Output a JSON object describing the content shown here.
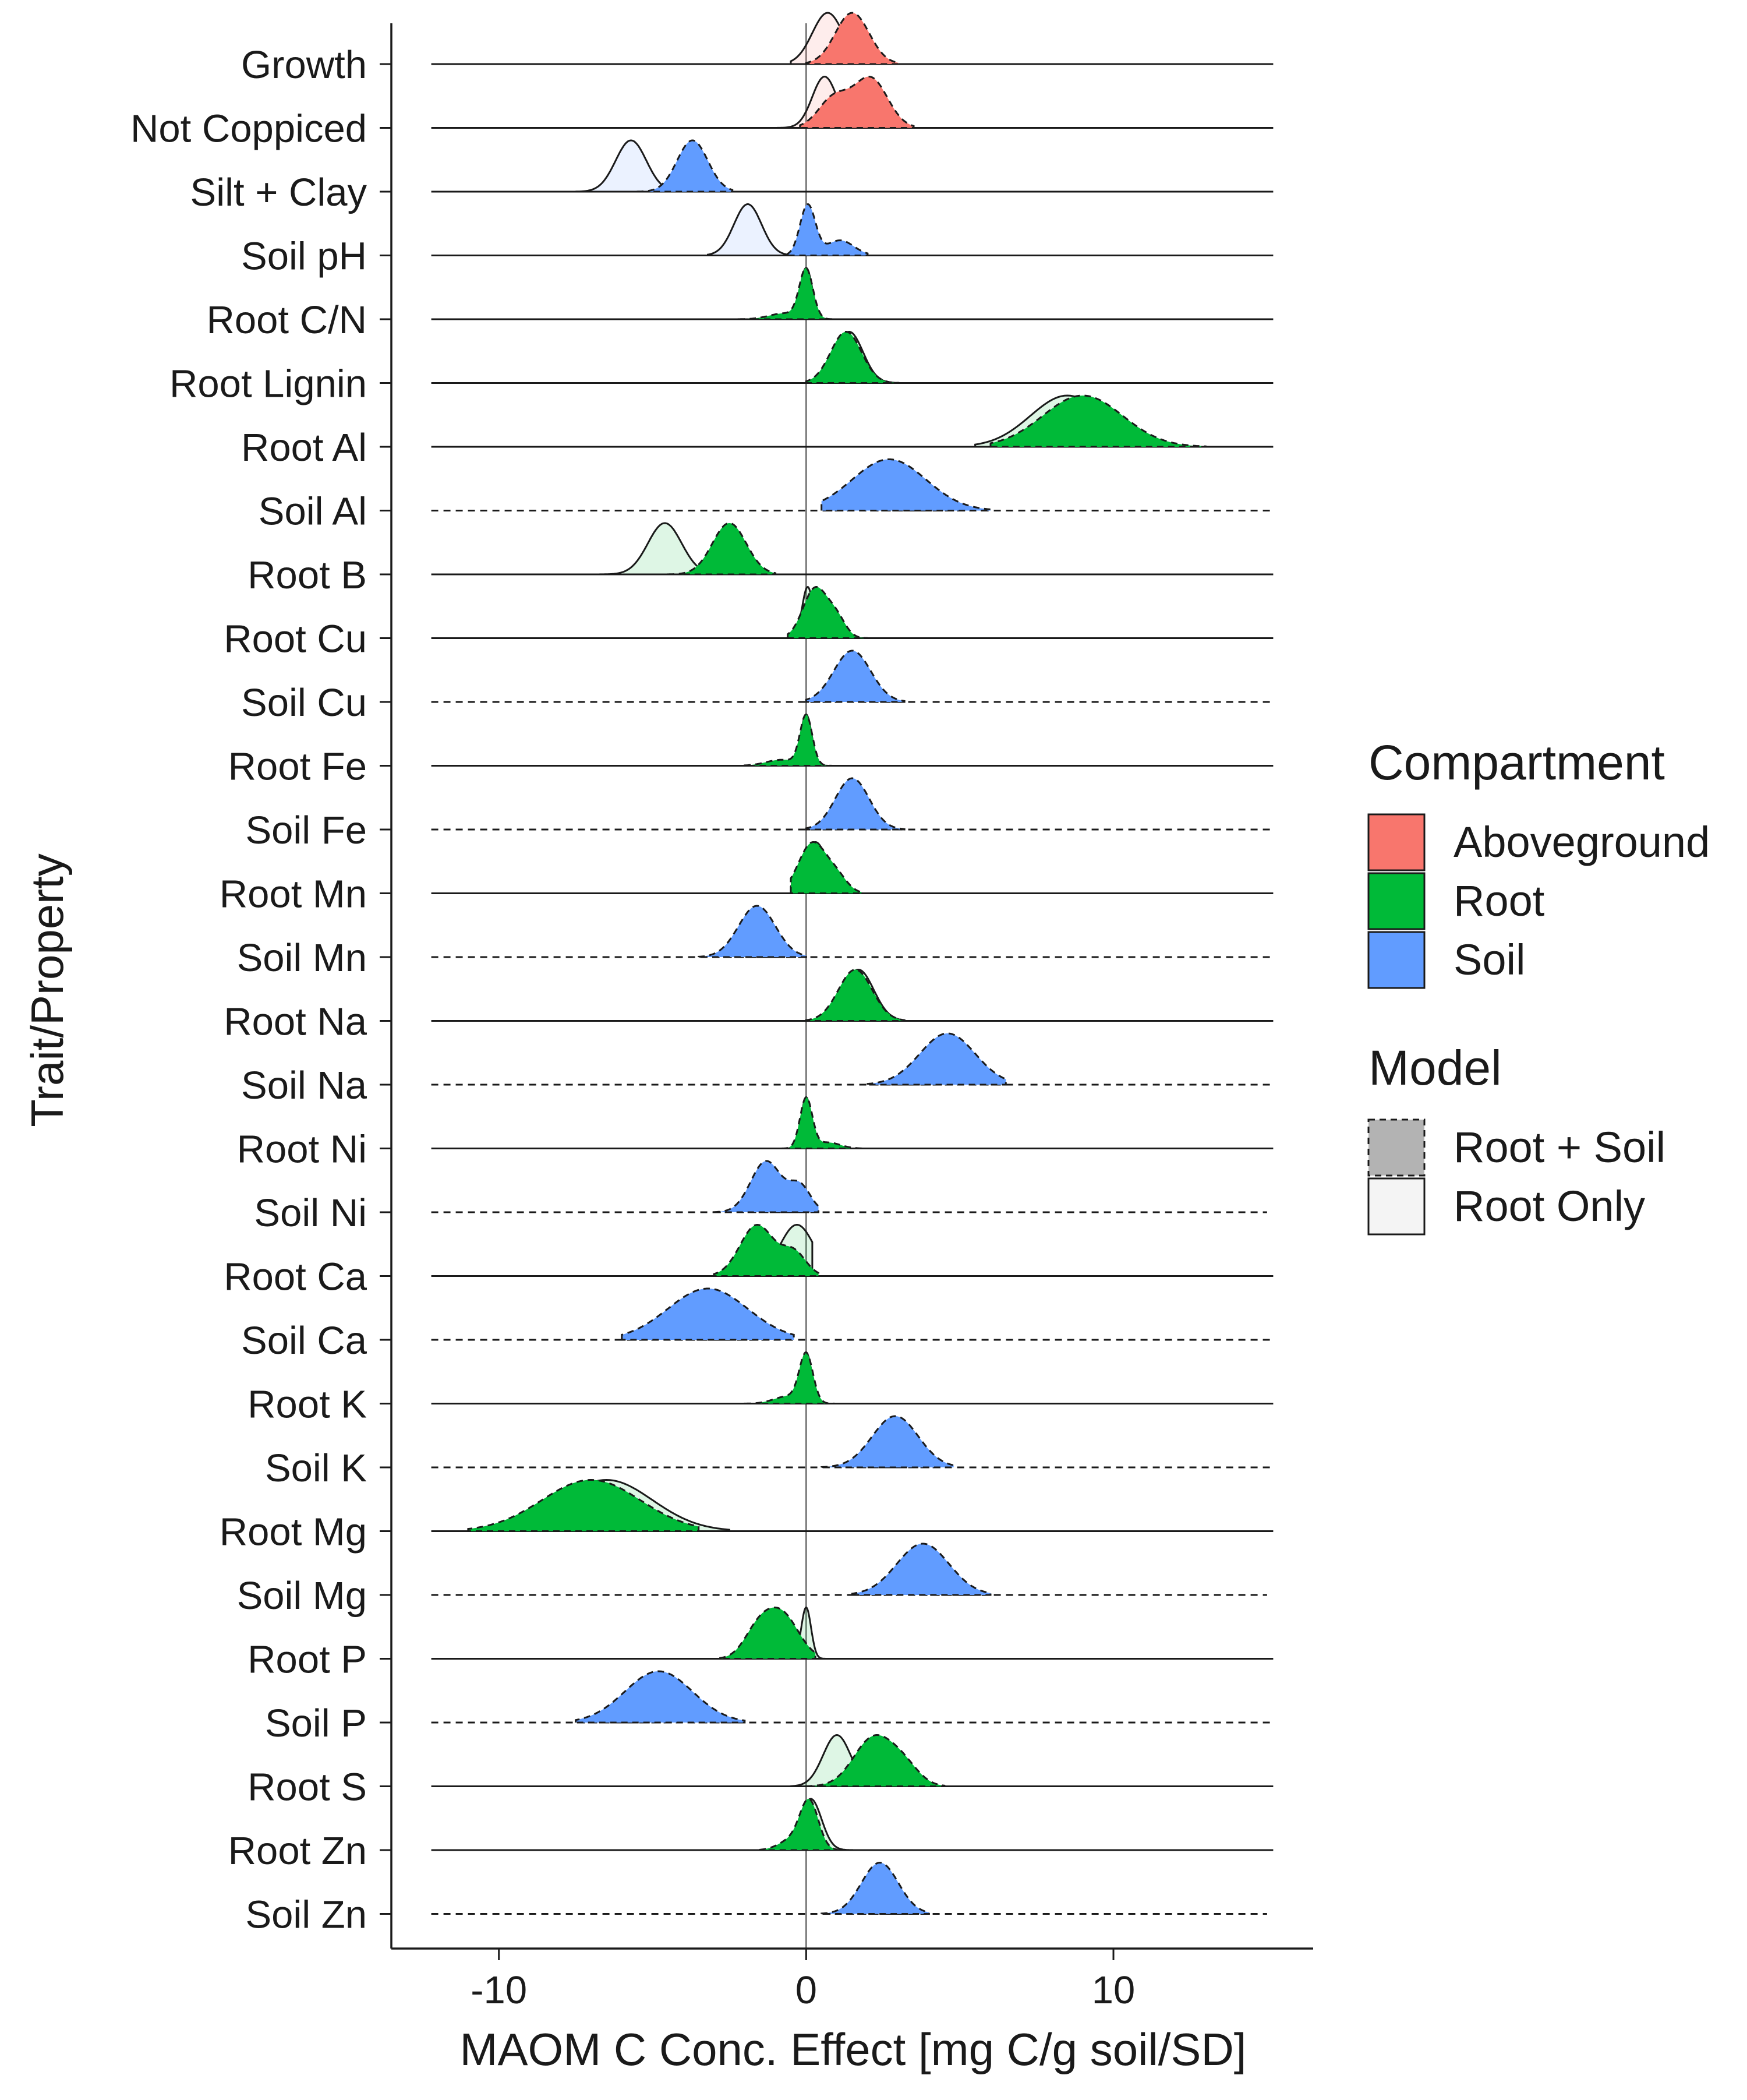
{
  "chart_data": {
    "type": "ridgeline",
    "title": "",
    "xlabel": "MAOM C Conc. Effect [mg C/g soil/SD]",
    "ylabel": "Trait/Property",
    "xlim": [
      -13.5,
      16.5
    ],
    "xticks": [
      -10,
      0,
      10
    ],
    "xtick_labels": [
      "-10",
      "0",
      "10"
    ],
    "reference_line_x": 0,
    "grid": false,
    "legend_position": "right",
    "compartment_colors": {
      "Aboveground": "#F8766D",
      "Root": "#00BA38",
      "Soil": "#619CFF"
    },
    "legend": {
      "compartment_title": "Compartment",
      "compartment_entries": [
        "Aboveground",
        "Root",
        "Soil"
      ],
      "model_title": "Model",
      "model_entries": [
        "Root + Soil",
        "Root Only"
      ]
    },
    "rows": [
      {
        "label": "Growth",
        "compartment": "Aboveground",
        "line_range": [
          -12.2,
          15.2
        ],
        "baseline_dashed": false,
        "root_soil": {
          "peaks": [
            [
              1.5,
              0.55,
              1.0
            ]
          ],
          "range": [
            0.0,
            3.0
          ]
        },
        "root_only": {
          "peaks": [
            [
              0.7,
              0.5,
              1.0
            ]
          ],
          "range": [
            -0.5,
            2.5
          ]
        }
      },
      {
        "label": "Not Coppiced",
        "compartment": "Aboveground",
        "line_range": [
          -12.2,
          15.2
        ],
        "baseline_dashed": false,
        "root_soil": {
          "peaks": [
            [
              2.1,
              0.55,
              0.75
            ],
            [
              0.9,
              0.5,
              0.45
            ]
          ],
          "range": [
            -0.2,
            3.5
          ]
        },
        "root_only": {
          "peaks": [
            [
              0.6,
              0.4,
              1.0
            ]
          ],
          "range": [
            -1.0,
            2.2
          ]
        }
      },
      {
        "label": "Silt + Clay",
        "compartment": "Soil",
        "line_range": [
          -12.2,
          15.2
        ],
        "baseline_dashed": false,
        "root_soil": {
          "peaks": [
            [
              -3.7,
              0.5,
              1.0
            ]
          ],
          "range": [
            -5.5,
            -2.4
          ]
        },
        "root_only": {
          "peaks": [
            [
              -5.7,
              0.5,
              1.0
            ]
          ],
          "range": [
            -7.5,
            -4.0
          ]
        }
      },
      {
        "label": "Soil pH",
        "compartment": "Soil",
        "line_range": [
          -12.2,
          15.2
        ],
        "baseline_dashed": false,
        "root_soil": {
          "peaks": [
            [
              0.05,
              0.25,
              1.0
            ],
            [
              1.1,
              0.45,
              0.3
            ]
          ],
          "range": [
            -0.6,
            2.0
          ]
        },
        "root_only": {
          "peaks": [
            [
              -1.9,
              0.45,
              1.0
            ]
          ],
          "range": [
            -3.2,
            -0.3
          ]
        }
      },
      {
        "label": "Root C/N",
        "compartment": "Root",
        "line_range": [
          -12.2,
          15.2
        ],
        "baseline_dashed": false,
        "root_soil": {
          "peaks": [
            [
              0.0,
              0.22,
              1.0
            ],
            [
              -0.7,
              0.5,
              0.12
            ]
          ],
          "range": [
            -2.2,
            1.0
          ]
        },
        "root_only": {
          "peaks": [
            [
              0.0,
              0.2,
              1.0
            ]
          ],
          "range": [
            -1.2,
            1.0
          ]
        }
      },
      {
        "label": "Root Lignin",
        "compartment": "Root",
        "line_range": [
          -12.2,
          15.2
        ],
        "baseline_dashed": false,
        "root_soil": {
          "peaks": [
            [
              1.3,
              0.5,
              1.0
            ]
          ],
          "range": [
            0.0,
            3.0
          ]
        },
        "root_only": {
          "peaks": [
            [
              1.4,
              0.45,
              1.0
            ]
          ],
          "range": [
            0.0,
            3.0
          ]
        }
      },
      {
        "label": "Root Al",
        "compartment": "Root",
        "line_range": [
          -12.2,
          15.2
        ],
        "baseline_dashed": false,
        "root_soil": {
          "peaks": [
            [
              9.0,
              1.3,
              1.0
            ]
          ],
          "range": [
            6.0,
            13.0
          ]
        },
        "root_only": {
          "peaks": [
            [
              8.5,
              1.2,
              1.0
            ]
          ],
          "range": [
            5.5,
            12.5
          ]
        }
      },
      {
        "label": "Soil Al",
        "compartment": "Soil",
        "line_range": [
          -12.2,
          15.2
        ],
        "baseline_dashed": true,
        "root_soil": {
          "peaks": [
            [
              2.7,
              1.2,
              1.0
            ]
          ],
          "range": [
            0.5,
            6.0
          ]
        },
        "root_only": null
      },
      {
        "label": "Root B",
        "compartment": "Root",
        "line_range": [
          -12.2,
          15.2
        ],
        "baseline_dashed": false,
        "root_soil": {
          "peaks": [
            [
              -2.5,
              0.55,
              1.0
            ]
          ],
          "range": [
            -4.5,
            -1.0
          ]
        },
        "root_only": {
          "peaks": [
            [
              -4.6,
              0.55,
              1.0
            ]
          ],
          "range": [
            -7.0,
            -2.5
          ]
        }
      },
      {
        "label": "Root Cu",
        "compartment": "Root",
        "line_range": [
          -12.2,
          15.2
        ],
        "baseline_dashed": false,
        "root_soil": {
          "peaks": [
            [
              0.3,
              0.4,
              1.0
            ],
            [
              1.0,
              0.3,
              0.35
            ]
          ],
          "range": [
            -0.6,
            2.0
          ]
        },
        "root_only": {
          "peaks": [
            [
              0.05,
              0.18,
              1.0
            ]
          ],
          "range": [
            -0.8,
            1.5
          ]
        }
      },
      {
        "label": "Soil Cu",
        "compartment": "Soil",
        "line_range": [
          -12.2,
          15.2
        ],
        "baseline_dashed": true,
        "root_soil": {
          "peaks": [
            [
              1.5,
              0.6,
              1.0
            ]
          ],
          "range": [
            0.0,
            3.2
          ]
        },
        "root_only": null
      },
      {
        "label": "Root Fe",
        "compartment": "Root",
        "line_range": [
          -12.2,
          15.2
        ],
        "baseline_dashed": false,
        "root_soil": {
          "peaks": [
            [
              0.0,
              0.2,
              1.0
            ],
            [
              -0.8,
              0.5,
              0.12
            ]
          ],
          "range": [
            -2.0,
            0.8
          ]
        },
        "root_only": {
          "peaks": [
            [
              0.0,
              0.18,
              1.0
            ]
          ],
          "range": [
            -1.0,
            0.8
          ]
        }
      },
      {
        "label": "Soil Fe",
        "compartment": "Soil",
        "line_range": [
          -12.2,
          15.2
        ],
        "baseline_dashed": true,
        "root_soil": {
          "peaks": [
            [
              1.5,
              0.55,
              1.0
            ]
          ],
          "range": [
            0.0,
            3.2
          ]
        },
        "root_only": null
      },
      {
        "label": "Root Mn",
        "compartment": "Root",
        "line_range": [
          -12.2,
          15.2
        ],
        "baseline_dashed": false,
        "root_soil": {
          "peaks": [
            [
              0.2,
              0.45,
              1.0
            ],
            [
              1.0,
              0.35,
              0.3
            ]
          ],
          "range": [
            -0.5,
            1.8
          ]
        },
        "root_only": {
          "peaks": [
            [
              0.3,
              0.4,
              1.0
            ]
          ],
          "range": [
            -0.5,
            1.8
          ]
        }
      },
      {
        "label": "Soil Mn",
        "compartment": "Soil",
        "line_range": [
          -12.2,
          15.2
        ],
        "baseline_dashed": true,
        "root_soil": {
          "peaks": [
            [
              -1.6,
              0.6,
              1.0
            ]
          ],
          "range": [
            -3.5,
            0.0
          ]
        },
        "root_only": null
      },
      {
        "label": "Root Na",
        "compartment": "Root",
        "line_range": [
          -12.2,
          15.2
        ],
        "baseline_dashed": false,
        "root_soil": {
          "peaks": [
            [
              1.6,
              0.55,
              1.0
            ]
          ],
          "range": [
            0.0,
            3.2
          ]
        },
        "root_only": {
          "peaks": [
            [
              1.7,
              0.5,
              1.0
            ]
          ],
          "range": [
            0.0,
            3.2
          ]
        }
      },
      {
        "label": "Soil Na",
        "compartment": "Soil",
        "line_range": [
          -12.2,
          15.2
        ],
        "baseline_dashed": true,
        "root_soil": {
          "peaks": [
            [
              4.6,
              0.9,
              1.0
            ]
          ],
          "range": [
            2.0,
            6.5
          ]
        },
        "root_only": null
      },
      {
        "label": "Root Ni",
        "compartment": "Root",
        "line_range": [
          -12.2,
          15.2
        ],
        "baseline_dashed": false,
        "root_soil": {
          "peaks": [
            [
              0.0,
              0.2,
              1.0
            ],
            [
              0.7,
              0.4,
              0.12
            ]
          ],
          "range": [
            -0.8,
            1.8
          ]
        },
        "root_only": {
          "peaks": [
            [
              0.0,
              0.16,
              1.0
            ]
          ],
          "range": [
            -0.8,
            1.5
          ]
        }
      },
      {
        "label": "Soil Ni",
        "compartment": "Soil",
        "line_range": [
          -12.2,
          15.0
        ],
        "baseline_dashed": true,
        "root_soil": {
          "peaks": [
            [
              -1.3,
              0.5,
              1.0
            ],
            [
              -0.2,
              0.35,
              0.5
            ]
          ],
          "range": [
            -3.0,
            0.4
          ]
        },
        "root_only": null
      },
      {
        "label": "Root Ca",
        "compartment": "Root",
        "line_range": [
          -12.2,
          15.2
        ],
        "baseline_dashed": false,
        "root_soil": {
          "peaks": [
            [
              -1.6,
              0.55,
              1.0
            ],
            [
              -0.4,
              0.4,
              0.45
            ]
          ],
          "range": [
            -3.0,
            0.4
          ]
        },
        "root_only": {
          "peaks": [
            [
              -0.3,
              0.55,
              1.0
            ]
          ],
          "range": [
            -2.0,
            0.2
          ]
        }
      },
      {
        "label": "Soil Ca",
        "compartment": "Soil",
        "line_range": [
          -12.2,
          15.2
        ],
        "baseline_dashed": true,
        "root_soil": {
          "peaks": [
            [
              -3.2,
              1.3,
              1.0
            ]
          ],
          "range": [
            -6.0,
            -0.4
          ]
        },
        "root_only": null
      },
      {
        "label": "Root K",
        "compartment": "Root",
        "line_range": [
          -12.2,
          15.2
        ],
        "baseline_dashed": false,
        "root_soil": {
          "peaks": [
            [
              0.0,
              0.22,
              1.0
            ],
            [
              -0.6,
              0.45,
              0.15
            ]
          ],
          "range": [
            -2.0,
            0.9
          ]
        },
        "root_only": {
          "peaks": [
            [
              0.0,
              0.18,
              1.0
            ]
          ],
          "range": [
            -1.0,
            0.9
          ]
        }
      },
      {
        "label": "Soil K",
        "compartment": "Soil",
        "line_range": [
          -12.2,
          15.2
        ],
        "baseline_dashed": true,
        "root_soil": {
          "peaks": [
            [
              2.9,
              0.75,
              1.0
            ]
          ],
          "range": [
            0.5,
            4.8
          ]
        },
        "root_only": null
      },
      {
        "label": "Root Mg",
        "compartment": "Root",
        "line_range": [
          -12.2,
          15.2
        ],
        "baseline_dashed": false,
        "root_soil": {
          "peaks": [
            [
              -7.0,
              1.6,
              1.0
            ]
          ],
          "range": [
            -11.0,
            -3.5
          ]
        },
        "root_only": {
          "peaks": [
            [
              -6.5,
              1.5,
              1.0
            ]
          ],
          "range": [
            -10.5,
            -2.5
          ]
        }
      },
      {
        "label": "Soil Mg",
        "compartment": "Soil",
        "line_range": [
          -12.2,
          15.0
        ],
        "baseline_dashed": true,
        "root_soil": {
          "peaks": [
            [
              3.8,
              0.85,
              1.0
            ]
          ],
          "range": [
            1.5,
            6.0
          ]
        },
        "root_only": null
      },
      {
        "label": "Root P",
        "compartment": "Root",
        "line_range": [
          -12.2,
          15.2
        ],
        "baseline_dashed": false,
        "root_soil": {
          "peaks": [
            [
              -0.8,
              0.55,
              1.0
            ],
            [
              -1.6,
              0.45,
              0.55
            ]
          ],
          "range": [
            -2.8,
            0.3
          ]
        },
        "root_only": {
          "peaks": [
            [
              0.0,
              0.16,
              1.0
            ]
          ],
          "range": [
            -1.2,
            0.8
          ]
        }
      },
      {
        "label": "Soil P",
        "compartment": "Soil",
        "line_range": [
          -12.2,
          15.2
        ],
        "baseline_dashed": true,
        "root_soil": {
          "peaks": [
            [
              -4.8,
              1.1,
              1.0
            ]
          ],
          "range": [
            -7.5,
            -2.0
          ]
        },
        "root_only": null
      },
      {
        "label": "Root S",
        "compartment": "Root",
        "line_range": [
          -12.2,
          15.2
        ],
        "baseline_dashed": false,
        "root_soil": {
          "peaks": [
            [
              2.2,
              0.65,
              1.0
            ],
            [
              3.2,
              0.5,
              0.35
            ]
          ],
          "range": [
            0.0,
            4.5
          ]
        },
        "root_only": {
          "peaks": [
            [
              1.0,
              0.45,
              1.0
            ]
          ],
          "range": [
            -0.5,
            2.5
          ]
        }
      },
      {
        "label": "Root Zn",
        "compartment": "Root",
        "line_range": [
          -12.2,
          15.2
        ],
        "baseline_dashed": false,
        "root_soil": {
          "peaks": [
            [
              0.1,
              0.3,
              1.0
            ],
            [
              -0.5,
              0.4,
              0.2
            ]
          ],
          "range": [
            -1.5,
            1.0
          ]
        },
        "root_only": {
          "peaks": [
            [
              0.15,
              0.35,
              1.0
            ]
          ],
          "range": [
            -0.8,
            1.5
          ]
        }
      },
      {
        "label": "Soil Zn",
        "compartment": "Soil",
        "line_range": [
          -12.2,
          15.0
        ],
        "baseline_dashed": true,
        "root_soil": {
          "peaks": [
            [
              2.4,
              0.6,
              1.0
            ]
          ],
          "range": [
            0.5,
            4.0
          ]
        },
        "root_only": null
      }
    ]
  }
}
